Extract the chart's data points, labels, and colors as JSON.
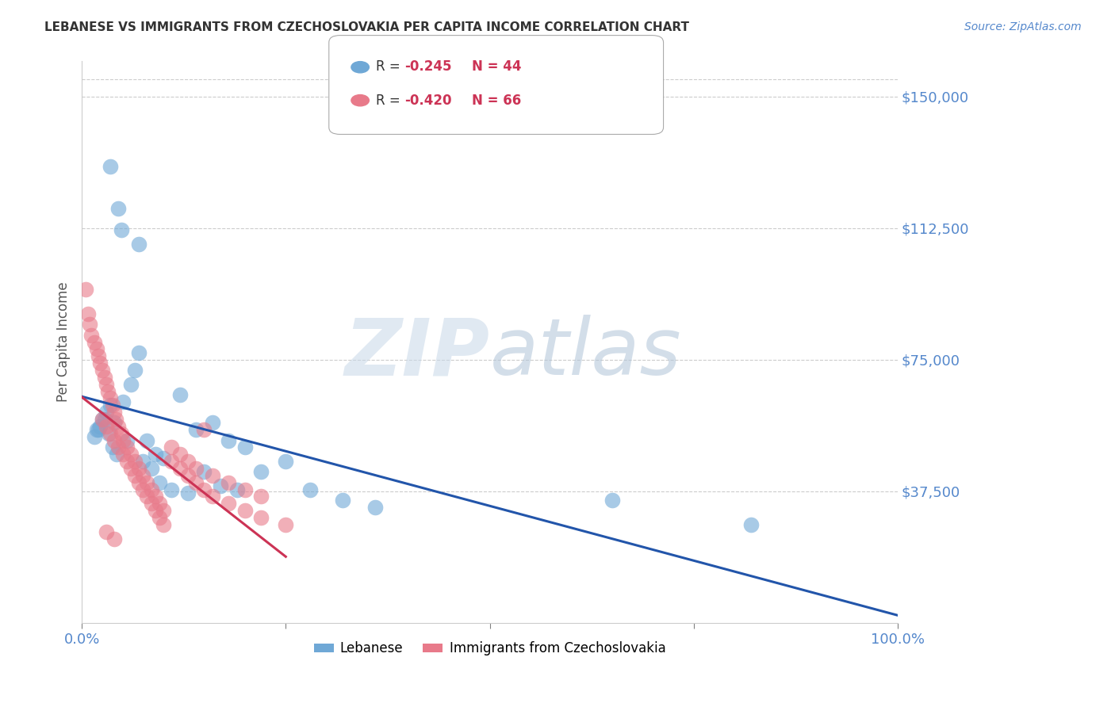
{
  "title": "LEBANESE VS IMMIGRANTS FROM CZECHOSLOVAKIA PER CAPITA INCOME CORRELATION CHART",
  "source": "Source: ZipAtlas.com",
  "ylabel": "Per Capita Income",
  "ytick_labels": [
    "$150,000",
    "$112,500",
    "$75,000",
    "$37,500"
  ],
  "ytick_values": [
    150000,
    112500,
    75000,
    37500
  ],
  "ymin": 0,
  "ymax": 160000,
  "xmin": 0.0,
  "xmax": 1.0,
  "label1": "Lebanese",
  "label2": "Immigrants from Czechoslovakia",
  "color1": "#6fa8d6",
  "color2": "#e87a8a",
  "trendline1_color": "#2255aa",
  "trendline2_color": "#cc3355",
  "background_color": "#ffffff",
  "scatter1_x": [
    0.035,
    0.045,
    0.048,
    0.07,
    0.02,
    0.025,
    0.03,
    0.035,
    0.04,
    0.05,
    0.06,
    0.065,
    0.07,
    0.08,
    0.09,
    0.1,
    0.12,
    0.14,
    0.16,
    0.18,
    0.2,
    0.22,
    0.25,
    0.28,
    0.32,
    0.36,
    0.015,
    0.018,
    0.022,
    0.028,
    0.033,
    0.038,
    0.043,
    0.055,
    0.075,
    0.085,
    0.095,
    0.11,
    0.13,
    0.15,
    0.17,
    0.19,
    0.65,
    0.82
  ],
  "scatter1_y": [
    130000,
    118000,
    112000,
    108000,
    55000,
    58000,
    60000,
    62000,
    57000,
    63000,
    68000,
    72000,
    77000,
    52000,
    48000,
    47000,
    65000,
    55000,
    57000,
    52000,
    50000,
    43000,
    46000,
    38000,
    35000,
    33000,
    53000,
    55000,
    56000,
    58000,
    54000,
    50000,
    48000,
    52000,
    46000,
    44000,
    40000,
    38000,
    37000,
    43000,
    39000,
    38000,
    35000,
    28000
  ],
  "scatter2_x": [
    0.005,
    0.008,
    0.01,
    0.012,
    0.015,
    0.018,
    0.02,
    0.022,
    0.025,
    0.028,
    0.03,
    0.032,
    0.035,
    0.038,
    0.04,
    0.042,
    0.045,
    0.048,
    0.05,
    0.055,
    0.06,
    0.065,
    0.07,
    0.075,
    0.08,
    0.085,
    0.09,
    0.095,
    0.1,
    0.11,
    0.12,
    0.13,
    0.14,
    0.15,
    0.16,
    0.18,
    0.2,
    0.22,
    0.025,
    0.03,
    0.035,
    0.04,
    0.045,
    0.05,
    0.055,
    0.06,
    0.065,
    0.07,
    0.075,
    0.08,
    0.085,
    0.09,
    0.095,
    0.1,
    0.11,
    0.12,
    0.13,
    0.14,
    0.15,
    0.16,
    0.18,
    0.2,
    0.22,
    0.25,
    0.03,
    0.04
  ],
  "scatter2_y": [
    95000,
    88000,
    85000,
    82000,
    80000,
    78000,
    76000,
    74000,
    72000,
    70000,
    68000,
    66000,
    64000,
    62000,
    60000,
    58000,
    56000,
    54000,
    52000,
    50000,
    48000,
    46000,
    44000,
    42000,
    40000,
    38000,
    36000,
    34000,
    32000,
    50000,
    48000,
    46000,
    44000,
    55000,
    42000,
    40000,
    38000,
    36000,
    58000,
    56000,
    54000,
    52000,
    50000,
    48000,
    46000,
    44000,
    42000,
    40000,
    38000,
    36000,
    34000,
    32000,
    30000,
    28000,
    46000,
    44000,
    42000,
    40000,
    38000,
    36000,
    34000,
    32000,
    30000,
    28000,
    26000,
    24000
  ]
}
